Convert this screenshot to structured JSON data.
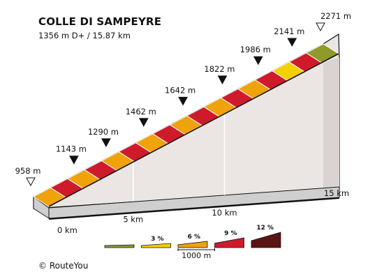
{
  "title": "COLLE DI SAMPEYRE",
  "subtitle": "1356 m D+ / 15.87 km",
  "footer": "© RouteYou",
  "chart_data": {
    "type": "area",
    "subtype": "3d-elevation-profile",
    "xunit": "km",
    "yunit": "m",
    "start_elevation": 958,
    "end_elevation": 2271,
    "elevation_markers": [
      {
        "km": 0,
        "elevation": 958,
        "label": "958 m",
        "marker": "hollow"
      },
      {
        "km": 1,
        "elevation": 1143,
        "label": "1143 m",
        "marker": "filled"
      },
      {
        "km": 2,
        "elevation": 1290,
        "label": "1290 m",
        "marker": "filled"
      },
      {
        "km": 3,
        "elevation": 1462,
        "label": "1462 m",
        "marker": "filled"
      },
      {
        "km": 4,
        "elevation": 1642,
        "label": "1642 m",
        "marker": "filled"
      },
      {
        "km": 5,
        "elevation": 1822,
        "label": "1822 m",
        "marker": "filled"
      },
      {
        "km": 6,
        "elevation": 1986,
        "label": "1986 m",
        "marker": "filled"
      },
      {
        "km": 7,
        "elevation": 2141,
        "label": "2141 m",
        "marker": "filled"
      },
      {
        "km": 8,
        "elevation": 2271,
        "label": "2271 m",
        "marker": "hollow"
      }
    ],
    "segments": [
      {
        "band": 2
      },
      {
        "band": 3
      },
      {
        "band": 2
      },
      {
        "band": 3
      },
      {
        "band": 2
      },
      {
        "band": 3
      },
      {
        "band": 2
      },
      {
        "band": 3
      },
      {
        "band": 2
      },
      {
        "band": 3
      },
      {
        "band": 2
      },
      {
        "band": 3
      },
      {
        "band": 2
      },
      {
        "band": 3
      },
      {
        "band": 1
      },
      {
        "band": 3
      },
      {
        "band": 0
      }
    ],
    "distance_labels": [
      {
        "km": 0,
        "label": "0 km"
      },
      {
        "km": 5,
        "label": "5 km"
      },
      {
        "km": 10,
        "label": "10 km"
      },
      {
        "km": 15,
        "label": "15 km"
      }
    ],
    "legend": {
      "bands": [
        {
          "label": "",
          "color": "#8f9a2b"
        },
        {
          "label": "3 %",
          "color": "#f5d000"
        },
        {
          "label": "6 %",
          "color": "#f0a20a"
        },
        {
          "label": "9 %",
          "color": "#cf1a2c"
        },
        {
          "label": "12 %",
          "color": "#5a1414"
        }
      ],
      "scale_label": "1000 m"
    },
    "colors": {
      "side": "#ebe6e3",
      "side_dark": "#d9d4d1",
      "edge": "#111111",
      "base": "#cfcfcf"
    }
  }
}
